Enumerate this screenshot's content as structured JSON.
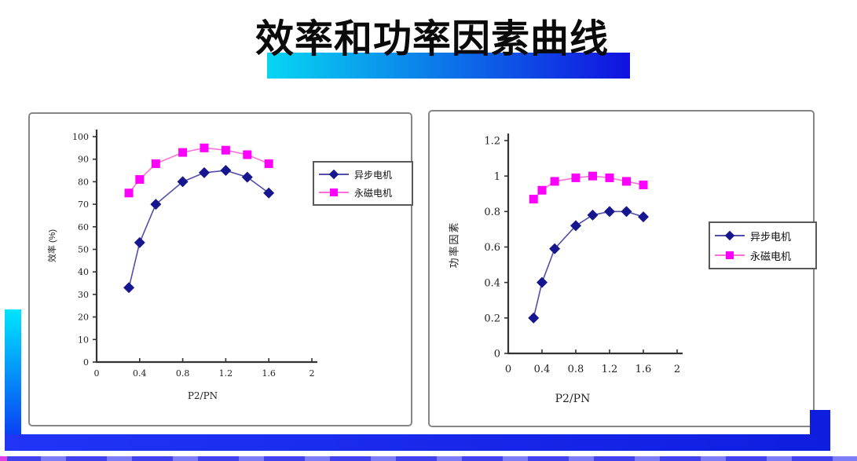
{
  "slide": {
    "title": "效率和功率因素曲线"
  },
  "chart_data": [
    {
      "type": "line",
      "title": "",
      "xlabel": "P2/PN",
      "ylabel": "效率 (%)",
      "xlim": [
        0,
        2
      ],
      "ylim": [
        0,
        100
      ],
      "grid": false,
      "legend_position": "right",
      "xticks": {
        "values": [
          0,
          0.4,
          0.8,
          1.2,
          1.6,
          2
        ],
        "labels": [
          "0",
          "0.4",
          "0.8",
          "1.2",
          "1.6",
          "2"
        ]
      },
      "yticks": {
        "values": [
          0,
          10,
          20,
          30,
          40,
          50,
          60,
          70,
          80,
          90,
          100
        ],
        "labels": [
          "0",
          "10",
          "20",
          "30",
          "40",
          "50",
          "60",
          "70",
          "80",
          "90",
          "100"
        ]
      },
      "x": [
        0.3,
        0.4,
        0.55,
        0.8,
        1.0,
        1.2,
        1.4,
        1.6
      ],
      "series": [
        {
          "name": "异步电机",
          "marker": "diamond",
          "marker_color": "#16168e",
          "line_color": "#5050a8",
          "values": [
            33,
            53,
            70,
            80,
            84,
            85,
            82,
            75
          ]
        },
        {
          "name": "永磁电机",
          "marker": "square",
          "marker_color": "#ff00ff",
          "line_color": "#ff6fd8",
          "values": [
            75,
            81,
            88,
            93,
            95,
            94,
            92,
            88
          ]
        }
      ]
    },
    {
      "type": "line",
      "title": "",
      "xlabel": "P2/PN",
      "ylabel": "功率因素",
      "xlim": [
        0,
        2
      ],
      "ylim": [
        0,
        1.2
      ],
      "grid": false,
      "legend_position": "right",
      "xticks": {
        "values": [
          0,
          0.4,
          0.8,
          1.2,
          1.6,
          2
        ],
        "labels": [
          "0",
          "0.4",
          "0.8",
          "1.2",
          "1.6",
          "2"
        ]
      },
      "yticks": {
        "values": [
          0,
          0.2,
          0.4,
          0.6,
          0.8,
          1,
          1.2
        ],
        "labels": [
          "0",
          "0.2",
          "0.4",
          "0.6",
          "0.8",
          "1",
          "1.2"
        ]
      },
      "x": [
        0.3,
        0.4,
        0.55,
        0.8,
        1.0,
        1.2,
        1.4,
        1.6
      ],
      "series": [
        {
          "name": "异步电机",
          "marker": "diamond",
          "marker_color": "#16168e",
          "line_color": "#5050a8",
          "values": [
            0.2,
            0.4,
            0.59,
            0.72,
            0.78,
            0.8,
            0.8,
            0.77
          ]
        },
        {
          "name": "永磁电机",
          "marker": "square",
          "marker_color": "#ff00ff",
          "line_color": "#ff6fd8",
          "values": [
            0.87,
            0.92,
            0.97,
            0.99,
            1.0,
            0.99,
            0.97,
            0.95
          ]
        }
      ]
    }
  ],
  "decor": {
    "title_bar_gradient_from": "#07d6f2",
    "title_bar_gradient_to": "#1111e0",
    "left_bar_gradient_from": "#00e6ff",
    "left_bar_gradient_to": "#0b2df2",
    "bottom_bar_gradient_from": "#2135f6",
    "bottom_bar_gradient_to": "#0f1ddf",
    "bottom_dash_color_a": "#4040ee",
    "bottom_dash_color_b": "#7d7df7",
    "accent_magenta": "#e040e0",
    "axis_color": "#333333",
    "panel_border": "#868686"
  }
}
